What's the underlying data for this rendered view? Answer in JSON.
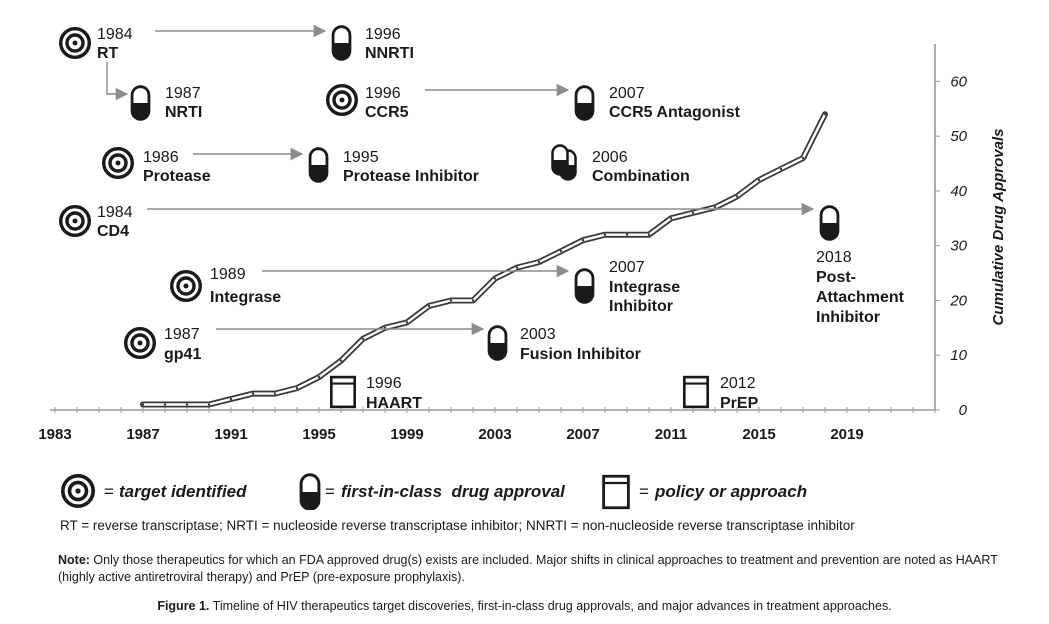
{
  "chart_data": {
    "type": "line",
    "series": [
      {
        "values": [
          {
            "x": 1987,
            "y": 1
          },
          {
            "x": 1988,
            "y": 1
          },
          {
            "x": 1989,
            "y": 1
          },
          {
            "x": 1990,
            "y": 1
          },
          {
            "x": 1991,
            "y": 2
          },
          {
            "x": 1992,
            "y": 3
          },
          {
            "x": 1993,
            "y": 3
          },
          {
            "x": 1994,
            "y": 4
          },
          {
            "x": 1995,
            "y": 6
          },
          {
            "x": 1996,
            "y": 9
          },
          {
            "x": 1997,
            "y": 13
          },
          {
            "x": 1998,
            "y": 15
          },
          {
            "x": 1999,
            "y": 16
          },
          {
            "x": 2000,
            "y": 19
          },
          {
            "x": 2001,
            "y": 20
          },
          {
            "x": 2002,
            "y": 20
          },
          {
            "x": 2003,
            "y": 24
          },
          {
            "x": 2004,
            "y": 26
          },
          {
            "x": 2005,
            "y": 27
          },
          {
            "x": 2006,
            "y": 29
          },
          {
            "x": 2007,
            "y": 31
          },
          {
            "x": 2008,
            "y": 32
          },
          {
            "x": 2009,
            "y": 32
          },
          {
            "x": 2010,
            "y": 32
          },
          {
            "x": 2011,
            "y": 35
          },
          {
            "x": 2012,
            "y": 36
          },
          {
            "x": 2013,
            "y": 37
          },
          {
            "x": 2014,
            "y": 39
          },
          {
            "x": 2015,
            "y": 42
          },
          {
            "x": 2016,
            "y": 44
          },
          {
            "x": 2017,
            "y": 46
          },
          {
            "x": 2018,
            "y": 54
          }
        ]
      }
    ],
    "x_ticks": [
      "1983",
      "1987",
      "1991",
      "1995",
      "1999",
      "2003",
      "2007",
      "2011",
      "2015",
      "2019"
    ],
    "y_ticks": [
      "0",
      "10",
      "20",
      "30",
      "40",
      "50",
      "60"
    ],
    "xlim": [
      1983,
      2023
    ],
    "ylim": [
      0,
      65
    ],
    "ylabel": "Cumulative Drug Approvals",
    "xlabel": "",
    "title": "",
    "grid": false
  },
  "events": [
    {
      "year": "1984",
      "label": "RT",
      "icon": "target"
    },
    {
      "year": "1996",
      "label": "NNRTI",
      "icon": "pill"
    },
    {
      "year": "1987",
      "label": "NRTI",
      "icon": "pill"
    },
    {
      "year": "1996",
      "label": "CCR5",
      "icon": "target"
    },
    {
      "year": "2007",
      "label": "CCR5 Antagonist",
      "icon": "pill"
    },
    {
      "year": "1986",
      "label": "Protease",
      "icon": "target"
    },
    {
      "year": "1995",
      "label": "Protease Inhibitor",
      "icon": "pill"
    },
    {
      "year": "2006",
      "label": "Combination",
      "icon": "pill-double"
    },
    {
      "year": "1984",
      "label": "CD4",
      "icon": "target"
    },
    {
      "year": "2018",
      "label": "Post-Attachment Inhibitor",
      "label_lines": [
        "Post-",
        "Attachment",
        "Inhibitor"
      ],
      "icon": "pill"
    },
    {
      "year": "1989",
      "label": "Integrase",
      "icon": "target"
    },
    {
      "year": "2007",
      "label": "Integrase Inhibitor",
      "label_lines": [
        "Integrase",
        "Inhibitor"
      ],
      "icon": "pill"
    },
    {
      "year": "1987",
      "label": "gp41",
      "icon": "target"
    },
    {
      "year": "2003",
      "label": "Fusion Inhibitor",
      "icon": "pill"
    },
    {
      "year": "1996",
      "label": "HAART",
      "icon": "policy"
    },
    {
      "year": "2012",
      "label": "PrEP",
      "icon": "policy"
    }
  ],
  "legend": {
    "target": "target identified",
    "pill": "first-in-class  drug approval",
    "policy": "policy or approach",
    "eq": "="
  },
  "abbreviations": "RT = reverse transcriptase; NRTI = nucleoside reverse transcriptase inhibitor; NNRTI = non-nucleoside reverse transcriptase inhibitor",
  "note": {
    "label": "Note:",
    "text": " Only those therapeutics for which an FDA approved drug(s) exists are included. Major shifts in clinical approaches to treatment and prevention are noted as HAART (highly active antiretroviral therapy) and PrEP (pre-exposure prophylaxis)."
  },
  "caption": {
    "label": "Figure 1.",
    "text": " Timeline of HIV therapeutics target discoveries, first-in-class drug approvals, and major advances in treatment approaches."
  },
  "colors": {
    "line": "#3a3a3a",
    "arrow": "#8c8c8c",
    "axis": "#999999",
    "ink": "#1a1a1a"
  }
}
